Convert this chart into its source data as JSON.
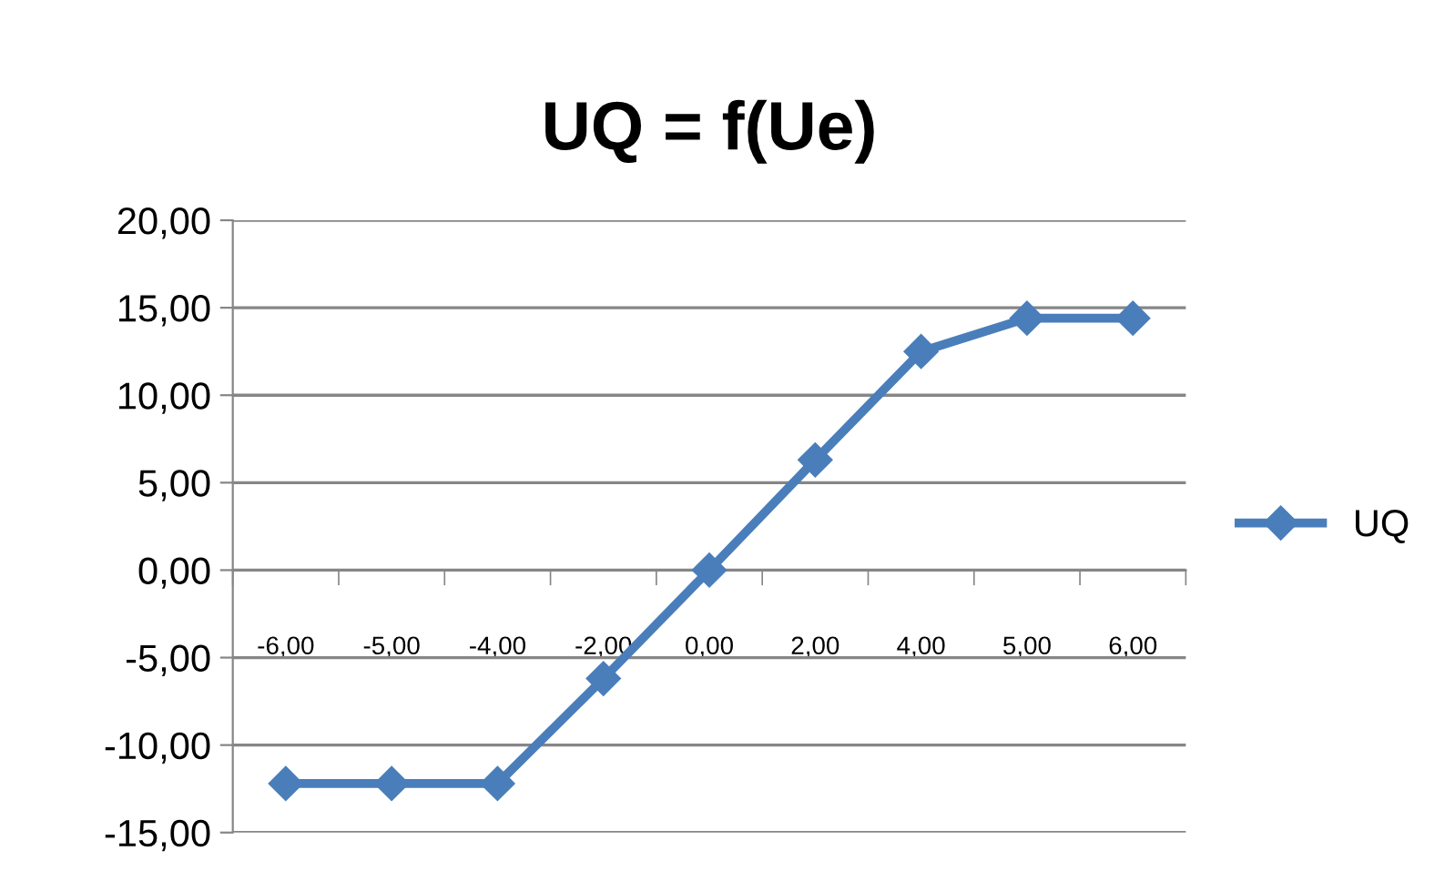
{
  "chart_data": {
    "type": "line",
    "title": "UQ = f(Ue)",
    "categories": [
      "-6,00",
      "-5,00",
      "-4,00",
      "-2,00",
      "0,00",
      "2,00",
      "4,00",
      "5,00",
      "6,00"
    ],
    "series": [
      {
        "name": "UQ",
        "color": "#4a7ebb",
        "values": [
          -12.2,
          -12.2,
          -12.2,
          -6.2,
          0,
          6.3,
          12.5,
          14.4,
          14.4
        ]
      }
    ],
    "ylim": [
      -15,
      20
    ],
    "yticks": [
      {
        "value": -15,
        "label": "-15,00"
      },
      {
        "value": -10,
        "label": "-10,00"
      },
      {
        "value": -5,
        "label": "-5,00"
      },
      {
        "value": 0,
        "label": "0,00"
      },
      {
        "value": 5,
        "label": "5,00"
      },
      {
        "value": 10,
        "label": "10,00"
      },
      {
        "value": 15,
        "label": "15,00"
      },
      {
        "value": 20,
        "label": "20,00"
      }
    ],
    "grid": "y",
    "legend": "right",
    "marker": "diamond",
    "line_style": "solid"
  }
}
